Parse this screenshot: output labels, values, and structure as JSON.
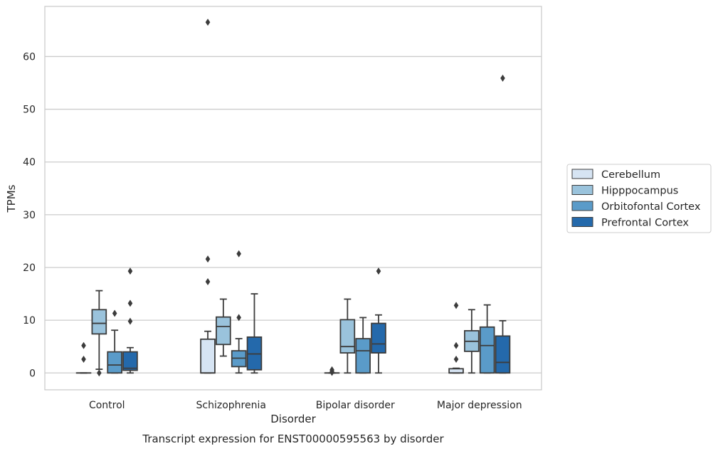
{
  "chart_data": {
    "type": "box",
    "caption": "Transcript expression for ENST00000595563 by disorder",
    "xlabel": "Disorder",
    "ylabel": "TPMs",
    "categories": [
      "Control",
      "Schizophrenia",
      "Bipolar disorder",
      "Major depression"
    ],
    "ylim": [
      -3.2,
      69.5
    ],
    "yticks": [
      0,
      10,
      20,
      30,
      40,
      50,
      60
    ],
    "grid": "horizontal",
    "legend_position": "right",
    "series": [
      {
        "name": "Cerebellum",
        "color": "#d6e4f3",
        "boxes": [
          {
            "whisker_low": 0,
            "q1": 0,
            "median": 0,
            "q3": 0,
            "whisker_high": 0,
            "outliers": [
              5.2,
              2.6
            ]
          },
          {
            "whisker_low": 0,
            "q1": 0,
            "median": 0,
            "q3": 6.4,
            "whisker_high": 7.9,
            "outliers": [
              66.5,
              21.6,
              17.3
            ]
          },
          {
            "whisker_low": 0,
            "q1": 0,
            "median": 0,
            "q3": 0,
            "whisker_high": 0,
            "outliers": [
              0.6,
              0.3,
              0.1
            ]
          },
          {
            "whisker_low": 0,
            "q1": 0,
            "median": 0,
            "q3": 0.8,
            "whisker_high": 0.9,
            "outliers": [
              12.8,
              5.2,
              2.6
            ]
          }
        ]
      },
      {
        "name": "Hipppocampus",
        "color": "#9ac3dc",
        "boxes": [
          {
            "whisker_low": 0.7,
            "q1": 7.4,
            "median": 9.4,
            "q3": 12.0,
            "whisker_high": 15.6,
            "outliers": [
              0
            ]
          },
          {
            "whisker_low": 3.2,
            "q1": 5.4,
            "median": 8.8,
            "q3": 10.6,
            "whisker_high": 14.0,
            "outliers": []
          },
          {
            "whisker_low": 0,
            "q1": 3.8,
            "median": 5.0,
            "q3": 10.1,
            "whisker_high": 14.0,
            "outliers": []
          },
          {
            "whisker_low": 0,
            "q1": 4.1,
            "median": 6.0,
            "q3": 8.0,
            "whisker_high": 12.0,
            "outliers": []
          }
        ]
      },
      {
        "name": "Orbitofontal Cortex",
        "color": "#5a9bc9",
        "boxes": [
          {
            "whisker_low": 0,
            "q1": 0,
            "median": 1.5,
            "q3": 4.0,
            "whisker_high": 8.1,
            "outliers": [
              11.3
            ]
          },
          {
            "whisker_low": 0,
            "q1": 1.2,
            "median": 2.8,
            "q3": 4.2,
            "whisker_high": 6.5,
            "outliers": [
              22.6,
              10.5
            ]
          },
          {
            "whisker_low": 0,
            "q1": 0,
            "median": 4.2,
            "q3": 6.5,
            "whisker_high": 10.5,
            "outliers": []
          },
          {
            "whisker_low": 0,
            "q1": 0,
            "median": 5.2,
            "q3": 8.7,
            "whisker_high": 12.9,
            "outliers": []
          }
        ]
      },
      {
        "name": "Prefrontal Cortex",
        "color": "#2469ab",
        "boxes": [
          {
            "whisker_low": 0,
            "q1": 0.5,
            "median": 0.9,
            "q3": 4.0,
            "whisker_high": 4.8,
            "outliers": [
              19.3,
              13.2,
              9.8
            ]
          },
          {
            "whisker_low": 0,
            "q1": 0.6,
            "median": 3.6,
            "q3": 6.8,
            "whisker_high": 15.0,
            "outliers": []
          },
          {
            "whisker_low": 0,
            "q1": 3.8,
            "median": 5.5,
            "q3": 9.4,
            "whisker_high": 11.0,
            "outliers": [
              19.3
            ]
          },
          {
            "whisker_low": 0,
            "q1": 0,
            "median": 2.0,
            "q3": 7.0,
            "whisker_high": 9.9,
            "outliers": [
              55.9
            ]
          }
        ]
      }
    ]
  }
}
